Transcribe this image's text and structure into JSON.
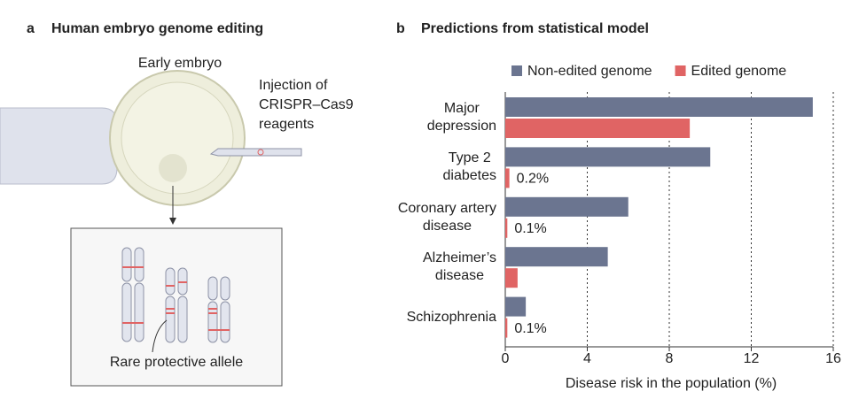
{
  "panel_a": {
    "label": "a",
    "title": "Human embryo genome editing",
    "embryo_label": "Early embryo",
    "injection_label": "Injection of\nCRISPR–Cas9\nreagents",
    "allele_label": "Rare protective allele"
  },
  "chart_data": {
    "type": "bar",
    "orientation": "horizontal",
    "label": "b",
    "title": "Predictions from statistical model",
    "categories": [
      "Major\ndepression",
      "Type 2\ndiabetes",
      "Coronary artery\ndisease",
      "Alzheimer’s\ndisease",
      "Schizophrenia"
    ],
    "series": [
      {
        "name": "Non-edited genome",
        "color": "#6b7590",
        "values": [
          15,
          10,
          6,
          5,
          1
        ]
      },
      {
        "name": "Edited genome",
        "color": "#e06464",
        "values": [
          9,
          0.2,
          0.1,
          0.6,
          0.1
        ],
        "value_labels": [
          null,
          "0.2%",
          "0.1%",
          null,
          "0.1%"
        ]
      }
    ],
    "x_label": "Disease risk in the population (%)",
    "xlim": [
      0,
      16
    ],
    "xticks": [
      0,
      4,
      8,
      12,
      16
    ],
    "grid": true,
    "legend": "top"
  }
}
